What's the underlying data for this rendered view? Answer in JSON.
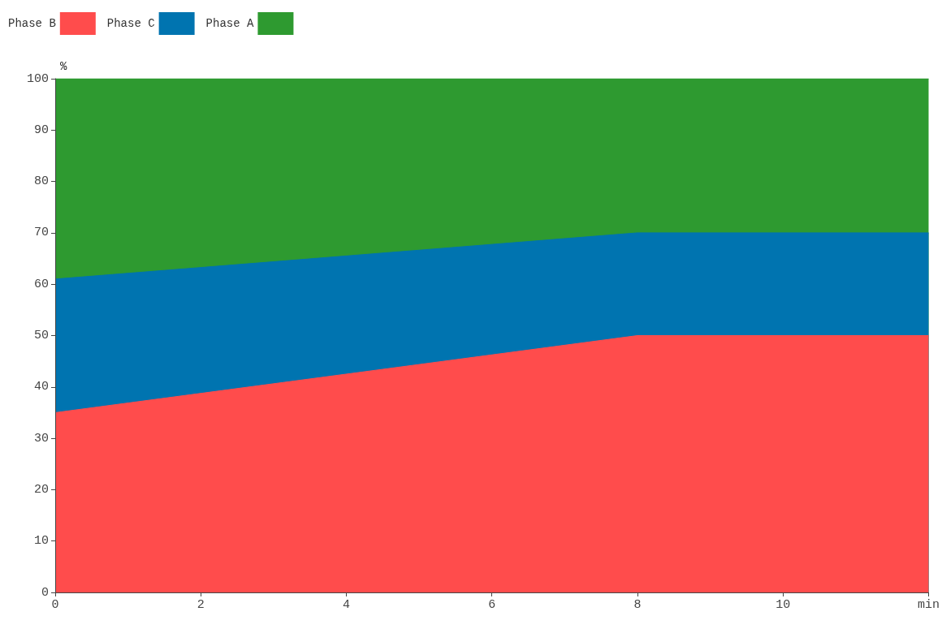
{
  "chart_data": {
    "type": "area",
    "stacked": true,
    "ylabel": "%",
    "x": [
      0,
      8,
      12
    ],
    "series": [
      {
        "name": "Phase B",
        "color": "#ff4c4c",
        "values": [
          35,
          50,
          50
        ]
      },
      {
        "name": "Phase C",
        "color": "#0074b0",
        "values": [
          26,
          20,
          20
        ]
      },
      {
        "name": "Phase A",
        "color": "#2e9a30",
        "values": [
          39,
          30,
          30
        ]
      }
    ],
    "xlim": [
      0,
      12
    ],
    "xticks": [
      0,
      2,
      4,
      6,
      8,
      10,
      {
        "value": 12,
        "label": "min"
      }
    ],
    "ylim": [
      0,
      100
    ],
    "yticks": [
      0,
      10,
      20,
      30,
      40,
      50,
      60,
      70,
      80,
      90,
      100
    ],
    "legend": "top left",
    "grid": false
  }
}
